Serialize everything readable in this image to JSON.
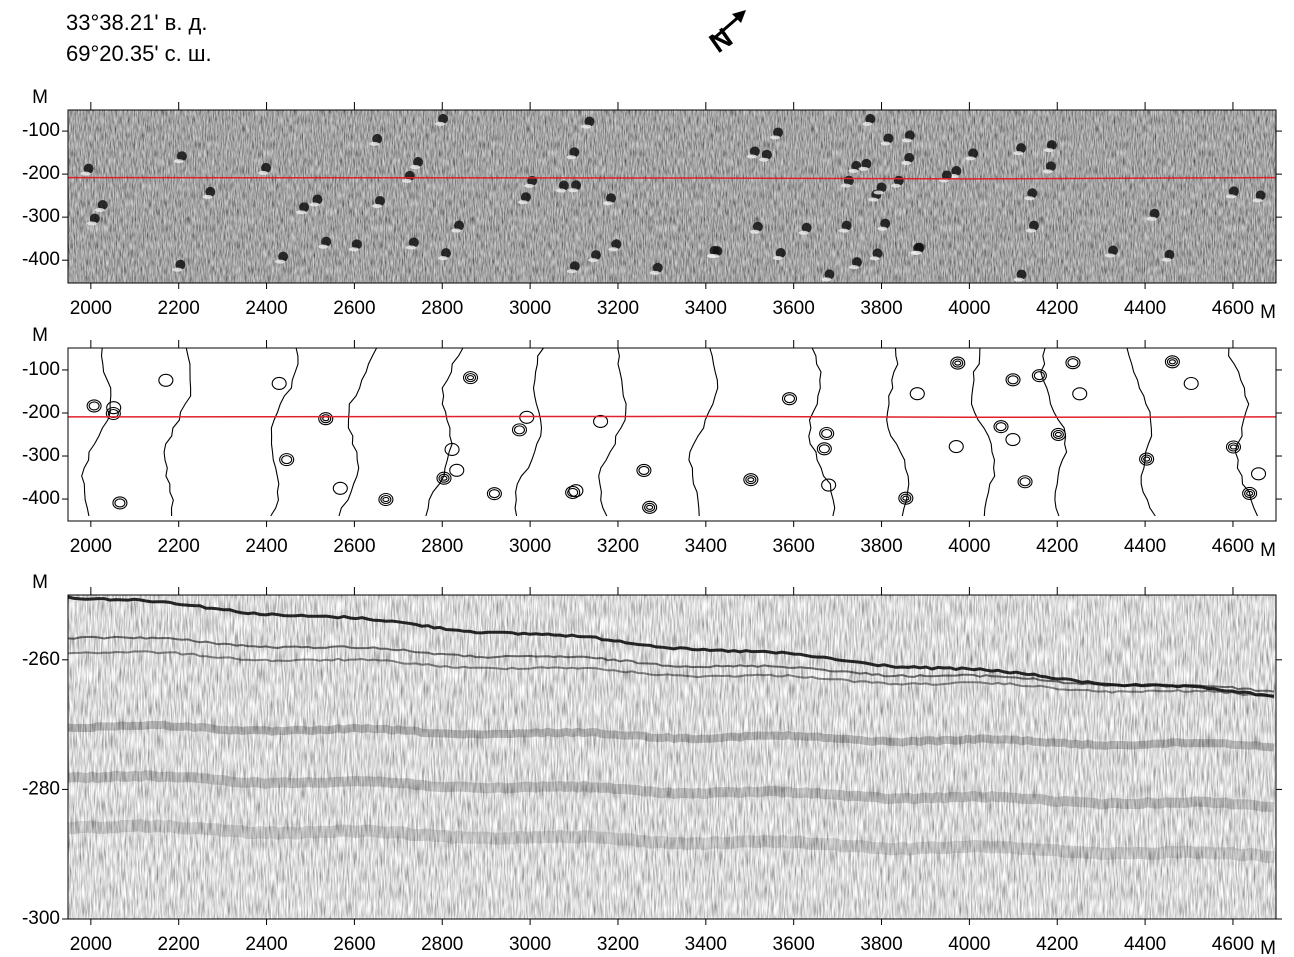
{
  "header": {
    "longitude": "33°38.21' в. д.",
    "latitude": "69°20.35' с. ш.",
    "north": "N"
  },
  "chart_data": [
    {
      "type": "image",
      "y_unit": "М",
      "x_unit": "М",
      "xlim": [
        1948,
        4698
      ],
      "ylim": [
        -453,
        -51
      ],
      "xticks": [
        2000,
        2200,
        2400,
        2600,
        2800,
        3000,
        3200,
        3400,
        3600,
        3800,
        4000,
        4200,
        4400,
        4600
      ],
      "yticks": [
        -100,
        -200,
        -300,
        -400
      ],
      "series": [
        {
          "color": "#e0202a",
          "x": [
            1948,
            3400,
            4000,
            4698
          ],
          "values": [
            -208,
            -209,
            -211,
            -208
          ]
        }
      ]
    },
    {
      "type": "contour",
      "y_unit": "М",
      "x_unit": "М",
      "xlim": [
        1948,
        4698
      ],
      "ylim": [
        -451,
        -49
      ],
      "xticks": [
        2000,
        2200,
        2400,
        2600,
        2800,
        3000,
        3200,
        3400,
        3600,
        3800,
        4000,
        4200,
        4400,
        4600
      ],
      "yticks": [
        -100,
        -200,
        -300,
        -400
      ],
      "series": [
        {
          "color": "#e0202a",
          "x": [
            1948,
            3400,
            4000,
            4698
          ],
          "values": [
            -209,
            -208,
            -210,
            -209
          ]
        }
      ]
    },
    {
      "type": "profile",
      "y_unit": "М",
      "x_unit": "М",
      "xlim": [
        1948,
        4698
      ],
      "ylim": [
        -300,
        -250
      ],
      "xticks": [
        2000,
        2200,
        2400,
        2600,
        2800,
        3000,
        3200,
        3400,
        3600,
        3800,
        4000,
        4200,
        4400,
        4600
      ],
      "yticks": [
        -260,
        -280,
        -300
      ]
    }
  ]
}
